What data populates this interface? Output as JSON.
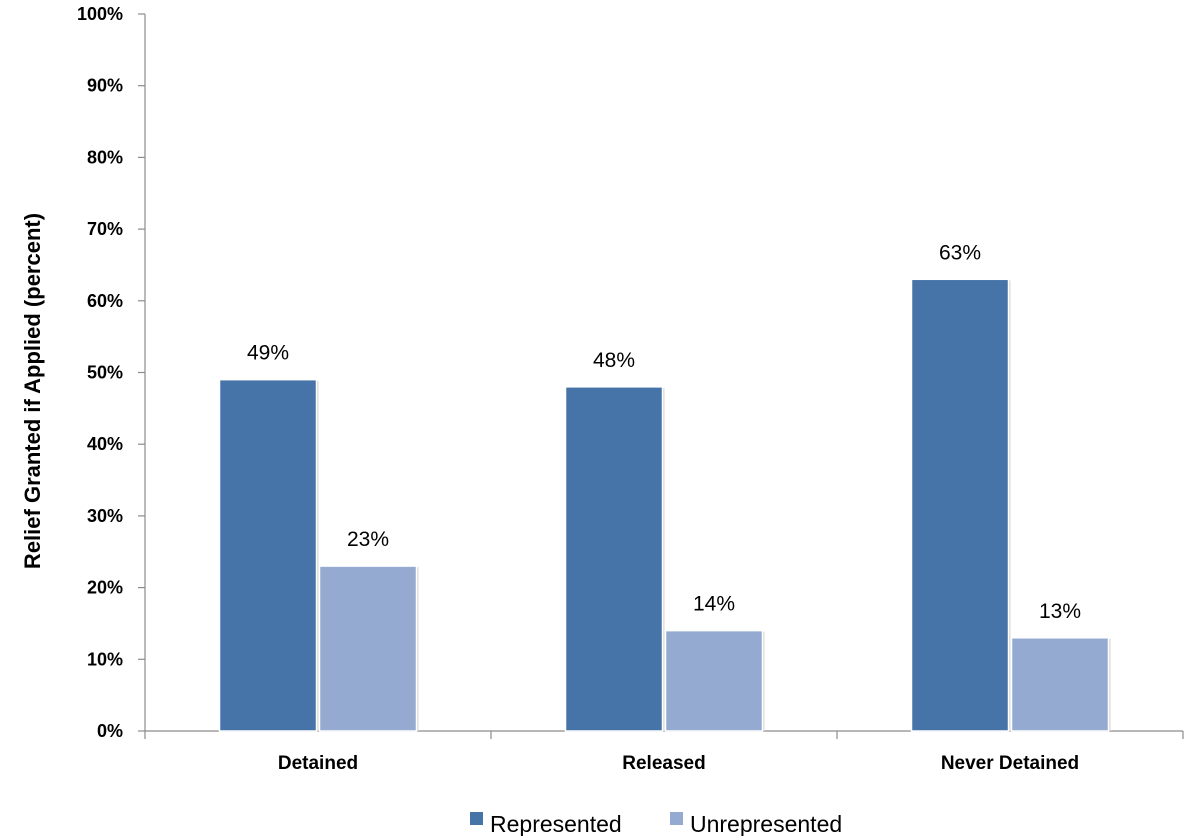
{
  "chart_data": {
    "type": "bar",
    "title": "",
    "xlabel": "",
    "ylabel": "Relief Granted if Applied (percent)",
    "categories": [
      "Detained",
      "Released",
      "Never Detained"
    ],
    "series": [
      {
        "name": "Represented",
        "values": [
          49,
          48,
          63
        ],
        "labels": [
          "49%",
          "48%",
          "63%"
        ],
        "color": "#4674a8"
      },
      {
        "name": "Unrepresented",
        "values": [
          23,
          14,
          13
        ],
        "labels": [
          "23%",
          "14%",
          "13%"
        ],
        "color": "#95aad1"
      }
    ],
    "ylim": [
      0,
      100
    ],
    "yticks": [
      0,
      10,
      20,
      30,
      40,
      50,
      60,
      70,
      80,
      90,
      100
    ],
    "ytick_labels": [
      "0%",
      "10%",
      "20%",
      "30%",
      "40%",
      "50%",
      "60%",
      "70%",
      "80%",
      "90%",
      "100%"
    ],
    "grid": false,
    "legend_position": "bottom"
  }
}
